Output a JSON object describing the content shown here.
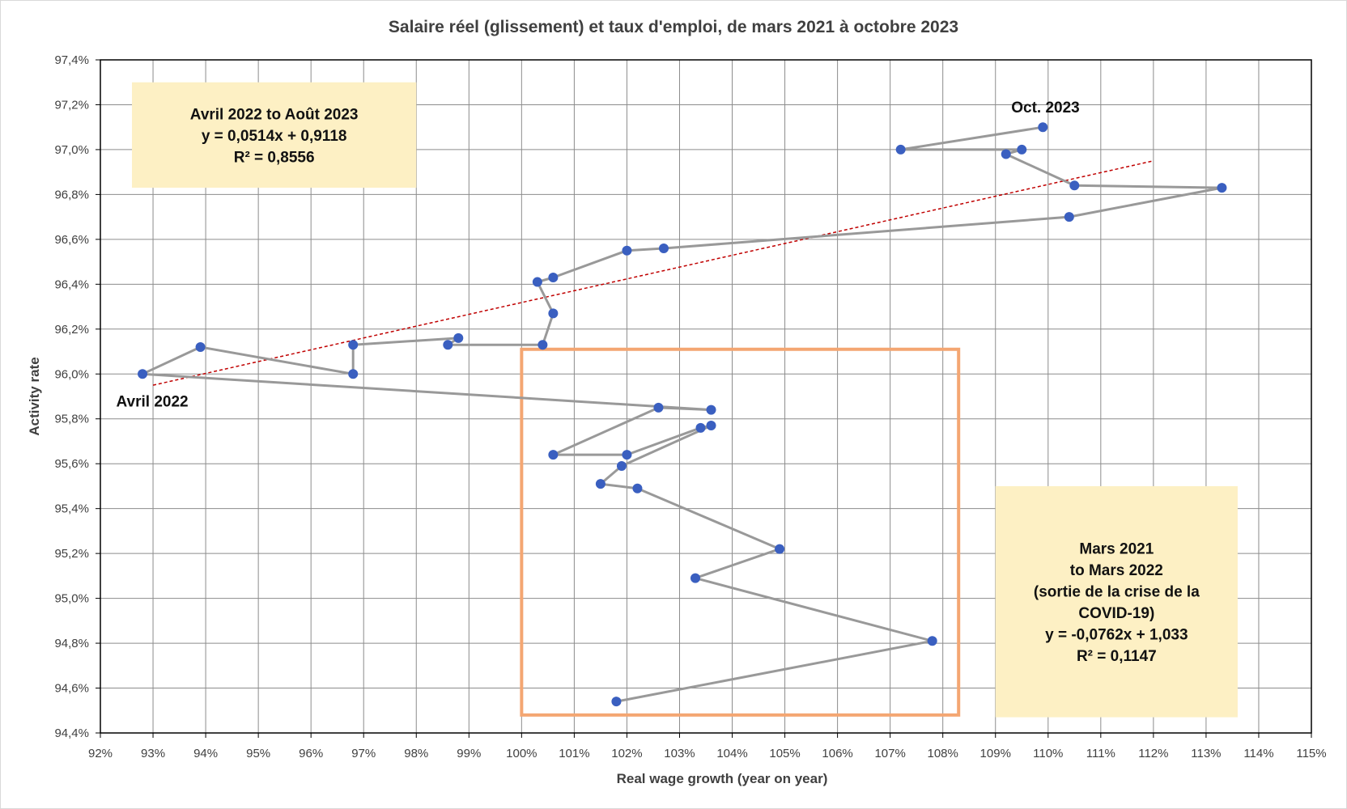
{
  "chart_data": {
    "type": "scatter",
    "title": "Salaire réel (glissement) et taux d'emploi, de mars 2021 à octobre 2023",
    "xlabel": "Real wage growth (year on year)",
    "ylabel": "Activity rate",
    "xlim": [
      92,
      115
    ],
    "ylim": [
      94.4,
      97.4
    ],
    "x_ticks": [
      "92%",
      "93%",
      "94%",
      "95%",
      "96%",
      "97%",
      "98%",
      "99%",
      "100%",
      "101%",
      "102%",
      "103%",
      "104%",
      "105%",
      "106%",
      "107%",
      "108%",
      "109%",
      "110%",
      "111%",
      "112%",
      "113%",
      "114%",
      "115%"
    ],
    "y_ticks": [
      "94,4%",
      "94,6%",
      "94,8%",
      "95,0%",
      "95,2%",
      "95,4%",
      "95,6%",
      "95,8%",
      "96,0%",
      "96,2%",
      "96,4%",
      "96,6%",
      "96,8%",
      "97,0%",
      "97,2%",
      "97,4%"
    ],
    "grid": true,
    "series": [
      {
        "marker_color": "#3a5fc0",
        "line_color": "#999999",
        "points": [
          {
            "x": 101.8,
            "y": 94.54
          },
          {
            "x": 107.8,
            "y": 94.81
          },
          {
            "x": 103.3,
            "y": 95.09
          },
          {
            "x": 104.9,
            "y": 95.22
          },
          {
            "x": 102.2,
            "y": 95.49
          },
          {
            "x": 101.5,
            "y": 95.51
          },
          {
            "x": 101.9,
            "y": 95.59
          },
          {
            "x": 103.6,
            "y": 95.77
          },
          {
            "x": 103.4,
            "y": 95.76
          },
          {
            "x": 102.0,
            "y": 95.64
          },
          {
            "x": 100.6,
            "y": 95.64
          },
          {
            "x": 102.6,
            "y": 95.85
          },
          {
            "x": 103.6,
            "y": 95.84
          },
          {
            "x": 92.8,
            "y": 96.0
          },
          {
            "x": 93.9,
            "y": 96.12
          },
          {
            "x": 96.8,
            "y": 96.0
          },
          {
            "x": 96.8,
            "y": 96.13
          },
          {
            "x": 98.8,
            "y": 96.16
          },
          {
            "x": 98.6,
            "y": 96.13
          },
          {
            "x": 100.4,
            "y": 96.13
          },
          {
            "x": 100.6,
            "y": 96.27
          },
          {
            "x": 100.3,
            "y": 96.41
          },
          {
            "x": 100.6,
            "y": 96.43
          },
          {
            "x": 102.0,
            "y": 96.55
          },
          {
            "x": 102.7,
            "y": 96.56
          },
          {
            "x": 110.4,
            "y": 96.7
          },
          {
            "x": 113.3,
            "y": 96.83
          },
          {
            "x": 110.5,
            "y": 96.84
          },
          {
            "x": 109.2,
            "y": 96.98
          },
          {
            "x": 109.5,
            "y": 97.0
          },
          {
            "x": 107.2,
            "y": 97.0
          },
          {
            "x": 109.9,
            "y": 97.1
          }
        ]
      }
    ],
    "trendline": {
      "color": "#c00000",
      "style": "dashed",
      "from": {
        "x": 93.0,
        "y": 95.95
      },
      "to": {
        "x": 112.0,
        "y": 96.95
      }
    },
    "highlight_box": {
      "color": "#f4a672",
      "x_range": [
        100.0,
        108.3
      ],
      "y_range": [
        94.48,
        96.11
      ]
    },
    "annotations": [
      {
        "text": "Avril 2022",
        "x": 92.3,
        "y": 95.88
      },
      {
        "text": "Oct. 2023",
        "x": 109.3,
        "y": 97.19
      }
    ],
    "text_boxes": [
      {
        "fill": "#fdf0c4",
        "x_range": [
          92.6,
          98.0
        ],
        "y_range": [
          96.83,
          97.3
        ],
        "lines": [
          "Avril 2022 to Août 2023",
          "y = 0,0514x + 0,9118",
          "R² = 0,8556"
        ]
      },
      {
        "fill": "#fdf0c4",
        "x_range": [
          109.0,
          113.6
        ],
        "y_range": [
          94.47,
          95.5
        ],
        "lines": [
          "Mars 2021",
          "to Mars 2022",
          "(sortie de la crise de la",
          "COVID-19)",
          "y = -0,0762x + 1,033",
          "R² = 0,1147"
        ]
      }
    ]
  }
}
